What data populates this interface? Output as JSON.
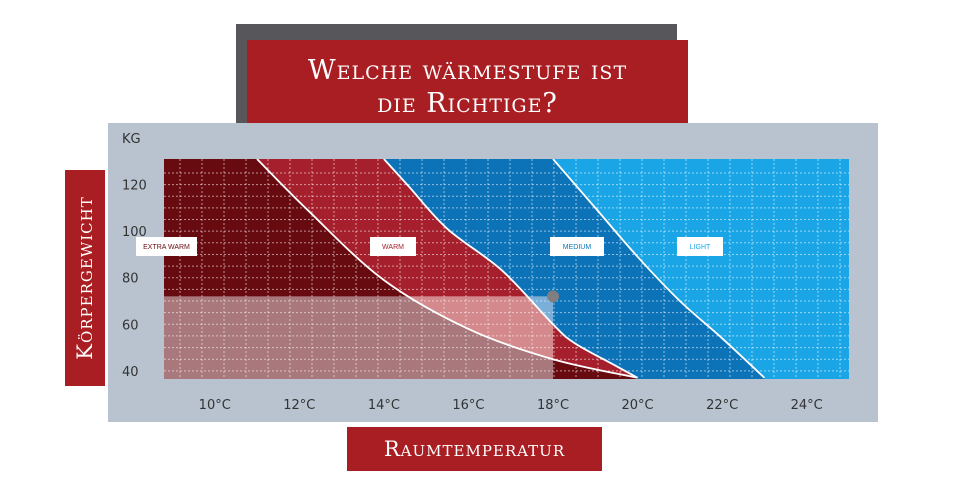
{
  "title": {
    "line1": "Welche wärmestufe ist",
    "line2": "die Richtige?"
  },
  "ylabel": "Körpergewicht",
  "xlabel": "Raumtemperatur",
  "y_unit": "KG",
  "colors": {
    "extra_warm": "#680b10",
    "warm": "#a51f2d",
    "medium": "#0d73b8",
    "light": "#1aa6e6",
    "label_red": "#a81e22",
    "panel": "#b8c3cf"
  },
  "chart_data": {
    "type": "area",
    "title": "Welche wärmestufe ist die Richtige?",
    "xlabel": "Raumtemperatur",
    "ylabel": "Körpergewicht",
    "x_ticks": [
      "10°C",
      "12°C",
      "14°C",
      "16°C",
      "18°C",
      "20°C",
      "22°C",
      "24°C"
    ],
    "y_ticks": [
      "40",
      "60",
      "80",
      "100",
      "120"
    ],
    "xlim": [
      8.8,
      25
    ],
    "ylim": [
      36.5,
      131
    ],
    "grid": true,
    "zones": [
      {
        "name": "EXTRA WARM",
        "color": "#680b10"
      },
      {
        "name": "WARM",
        "color": "#a51f2d"
      },
      {
        "name": "MEDIUM",
        "color": "#0d73b8"
      },
      {
        "name": "LIGHT",
        "color": "#1aa6e6"
      }
    ],
    "boundaries": [
      {
        "between": [
          "EXTRA WARM",
          "WARM"
        ],
        "points": [
          [
            11.0,
            131
          ],
          [
            12.2,
            109
          ],
          [
            14.0,
            79
          ],
          [
            16.0,
            58
          ],
          [
            18.0,
            45
          ],
          [
            20.0,
            37
          ]
        ]
      },
      {
        "between": [
          "WARM",
          "MEDIUM"
        ],
        "points": [
          [
            14.0,
            131
          ],
          [
            14.6,
            119
          ],
          [
            15.5,
            101
          ],
          [
            16.8,
            83
          ],
          [
            18.0,
            60
          ],
          [
            18.5,
            52
          ],
          [
            19.5,
            42
          ],
          [
            20.0,
            37
          ]
        ]
      },
      {
        "between": [
          "MEDIUM",
          "LIGHT"
        ],
        "points": [
          [
            18.0,
            131
          ],
          [
            19.0,
            110
          ],
          [
            20.0,
            89
          ],
          [
            21.0,
            70
          ],
          [
            22.0,
            54
          ],
          [
            23.0,
            37
          ]
        ]
      }
    ],
    "highlight": {
      "x_max": 18,
      "y_max": 72
    },
    "marker": {
      "x": 18,
      "y": 72
    }
  }
}
